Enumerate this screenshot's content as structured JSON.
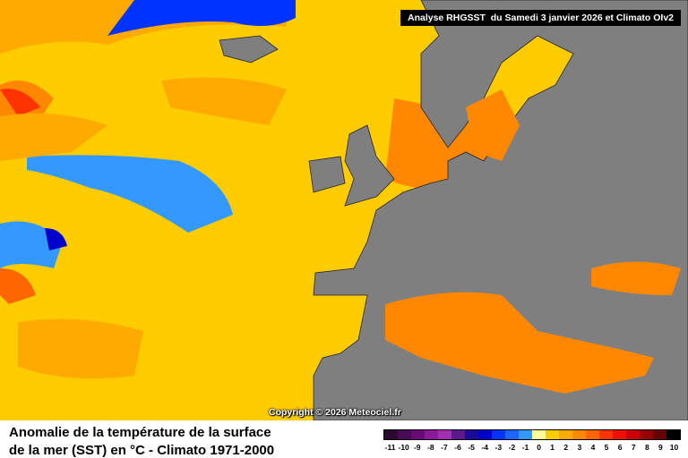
{
  "header": "Analyse RHGSST  du Samedi 3 janvier 2026 et Climato OIv2",
  "copyright": "Copyright © 2026 Meteociel.fr",
  "title": {
    "line1": "Anomalie de la température de la surface",
    "line2": "de la mer (SST) en °C - Climato 1971-2000"
  },
  "legend": {
    "labels": [
      -11,
      -10,
      -9,
      -8,
      -7,
      -6,
      -5,
      -4,
      -3,
      -2,
      -1,
      0,
      1,
      2,
      3,
      4,
      5,
      6,
      7,
      8,
      9,
      10
    ],
    "colors": [
      "#2a0a30",
      "#4b0a55",
      "#6a0a78",
      "#8a1a9a",
      "#a030b0",
      "#5a1a8a",
      "#1a0a9a",
      "#0000cc",
      "#0033ff",
      "#1a66ff",
      "#3399ff",
      "#ffff99",
      "#ffcc00",
      "#ffaa00",
      "#ff8800",
      "#ff6600",
      "#ff3300",
      "#ee1100",
      "#cc0000",
      "#990000",
      "#660000",
      "#000000"
    ]
  }
}
